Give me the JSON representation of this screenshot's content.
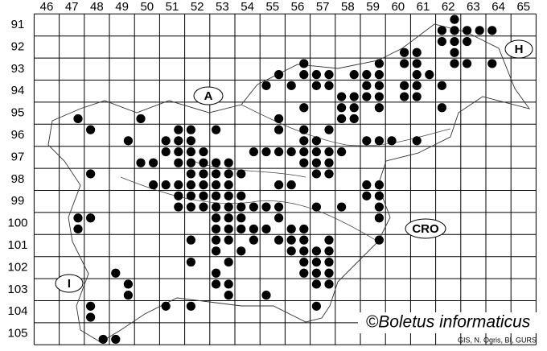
{
  "columns": [
    46,
    47,
    48,
    49,
    50,
    51,
    52,
    53,
    54,
    55,
    56,
    57,
    58,
    59,
    60,
    61,
    62,
    63,
    64,
    65
  ],
  "rows": [
    91,
    92,
    93,
    94,
    95,
    96,
    97,
    98,
    99,
    100,
    101,
    102,
    103,
    104,
    105
  ],
  "region_labels": [
    "A",
    "H",
    "I",
    "CRO"
  ],
  "watermark": "©Boletus informaticus",
  "credit": "GIS, N. Ogris, BI, GURS",
  "dots": [
    [
      62.25,
      90.75
    ],
    [
      61.75,
      91.25
    ],
    [
      62.25,
      91.25
    ],
    [
      62.75,
      91.25
    ],
    [
      63.25,
      91.25
    ],
    [
      63.75,
      91.25
    ],
    [
      61.75,
      91.75
    ],
    [
      62.25,
      91.75
    ],
    [
      62.75,
      91.75
    ],
    [
      60.25,
      92.25
    ],
    [
      60.75,
      92.25
    ],
    [
      62.25,
      92.25
    ],
    [
      56.25,
      92.75
    ],
    [
      59.25,
      92.75
    ],
    [
      60.25,
      92.75
    ],
    [
      60.75,
      92.75
    ],
    [
      62.25,
      92.75
    ],
    [
      62.75,
      92.75
    ],
    [
      63.75,
      92.75
    ],
    [
      55.25,
      93.25
    ],
    [
      56.25,
      93.25
    ],
    [
      56.75,
      93.25
    ],
    [
      57.25,
      93.25
    ],
    [
      58.25,
      93.25
    ],
    [
      58.75,
      93.25
    ],
    [
      59.25,
      93.25
    ],
    [
      60.75,
      93.25
    ],
    [
      61.25,
      93.25
    ],
    [
      54.75,
      93.75
    ],
    [
      55.75,
      93.75
    ],
    [
      56.75,
      93.75
    ],
    [
      57.25,
      93.75
    ],
    [
      58.75,
      93.75
    ],
    [
      59.25,
      93.75
    ],
    [
      60.25,
      93.75
    ],
    [
      60.75,
      93.75
    ],
    [
      61.75,
      93.75
    ],
    [
      57.75,
      94.25
    ],
    [
      58.25,
      94.25
    ],
    [
      58.75,
      94.25
    ],
    [
      59.25,
      94.25
    ],
    [
      60.25,
      94.25
    ],
    [
      60.75,
      94.25
    ],
    [
      56.25,
      94.75
    ],
    [
      57.75,
      94.75
    ],
    [
      58.25,
      94.75
    ],
    [
      59.25,
      94.75
    ],
    [
      61.75,
      94.75
    ],
    [
      47.25,
      95.25
    ],
    [
      49.75,
      95.25
    ],
    [
      55.25,
      95.25
    ],
    [
      57.75,
      95.25
    ],
    [
      58.25,
      95.25
    ],
    [
      47.75,
      95.75
    ],
    [
      51.25,
      95.75
    ],
    [
      51.75,
      95.75
    ],
    [
      52.75,
      95.75
    ],
    [
      55.25,
      95.75
    ],
    [
      56.25,
      95.75
    ],
    [
      57.25,
      95.75
    ],
    [
      49.25,
      96.25
    ],
    [
      50.75,
      96.25
    ],
    [
      51.25,
      96.25
    ],
    [
      51.75,
      96.25
    ],
    [
      56.25,
      96.25
    ],
    [
      56.75,
      96.25
    ],
    [
      58.75,
      96.25
    ],
    [
      59.25,
      96.25
    ],
    [
      59.75,
      96.25
    ],
    [
      60.75,
      96.25
    ],
    [
      50.75,
      96.75
    ],
    [
      51.25,
      96.75
    ],
    [
      51.75,
      96.75
    ],
    [
      52.25,
      96.75
    ],
    [
      54.25,
      96.75
    ],
    [
      54.75,
      96.75
    ],
    [
      55.25,
      96.75
    ],
    [
      55.75,
      96.75
    ],
    [
      56.25,
      96.75
    ],
    [
      56.75,
      96.75
    ],
    [
      57.25,
      96.75
    ],
    [
      57.75,
      96.75
    ],
    [
      49.75,
      97.25
    ],
    [
      50.25,
      97.25
    ],
    [
      51.25,
      97.25
    ],
    [
      51.75,
      97.25
    ],
    [
      52.25,
      97.25
    ],
    [
      52.75,
      97.25
    ],
    [
      53.25,
      97.25
    ],
    [
      56.25,
      97.25
    ],
    [
      56.75,
      97.25
    ],
    [
      57.25,
      97.25
    ],
    [
      47.75,
      97.75
    ],
    [
      51.75,
      97.75
    ],
    [
      52.25,
      97.75
    ],
    [
      52.75,
      97.75
    ],
    [
      53.25,
      97.75
    ],
    [
      53.75,
      97.75
    ],
    [
      56.75,
      97.75
    ],
    [
      57.25,
      97.75
    ],
    [
      50.25,
      98.25
    ],
    [
      50.75,
      98.25
    ],
    [
      51.25,
      98.25
    ],
    [
      51.75,
      98.25
    ],
    [
      52.25,
      98.25
    ],
    [
      52.75,
      98.25
    ],
    [
      53.25,
      98.25
    ],
    [
      55.25,
      98.25
    ],
    [
      55.75,
      98.25
    ],
    [
      58.75,
      98.25
    ],
    [
      59.25,
      98.25
    ],
    [
      51.25,
      98.75
    ],
    [
      51.75,
      98.75
    ],
    [
      52.25,
      98.75
    ],
    [
      52.75,
      98.75
    ],
    [
      53.25,
      98.75
    ],
    [
      53.75,
      98.75
    ],
    [
      58.75,
      98.75
    ],
    [
      59.25,
      98.75
    ],
    [
      51.25,
      99.25
    ],
    [
      51.75,
      99.25
    ],
    [
      52.25,
      99.25
    ],
    [
      52.75,
      99.25
    ],
    [
      53.25,
      99.25
    ],
    [
      53.75,
      99.25
    ],
    [
      54.25,
      99.25
    ],
    [
      54.75,
      99.25
    ],
    [
      55.25,
      99.25
    ],
    [
      56.75,
      99.25
    ],
    [
      57.75,
      99.25
    ],
    [
      59.25,
      99.25
    ],
    [
      47.25,
      99.75
    ],
    [
      47.75,
      99.75
    ],
    [
      52.75,
      99.75
    ],
    [
      53.25,
      99.75
    ],
    [
      53.75,
      99.75
    ],
    [
      55.25,
      99.75
    ],
    [
      59.25,
      99.75
    ],
    [
      47.25,
      100.25
    ],
    [
      52.75,
      100.25
    ],
    [
      53.25,
      100.25
    ],
    [
      53.75,
      100.25
    ],
    [
      54.25,
      100.25
    ],
    [
      54.75,
      100.25
    ],
    [
      55.75,
      100.25
    ],
    [
      56.25,
      100.25
    ],
    [
      51.75,
      100.75
    ],
    [
      52.75,
      100.75
    ],
    [
      53.25,
      100.75
    ],
    [
      54.25,
      100.75
    ],
    [
      55.25,
      100.75
    ],
    [
      55.75,
      100.75
    ],
    [
      56.25,
      100.75
    ],
    [
      57.25,
      100.75
    ],
    [
      59.25,
      100.75
    ],
    [
      52.75,
      101.25
    ],
    [
      53.75,
      101.25
    ],
    [
      55.75,
      101.25
    ],
    [
      56.25,
      101.25
    ],
    [
      56.75,
      101.25
    ],
    [
      57.25,
      101.25
    ],
    [
      51.75,
      101.75
    ],
    [
      53.25,
      101.75
    ],
    [
      56.25,
      101.75
    ],
    [
      56.75,
      101.75
    ],
    [
      57.25,
      101.75
    ],
    [
      48.75,
      102.25
    ],
    [
      52.75,
      102.25
    ],
    [
      56.25,
      102.25
    ],
    [
      56.75,
      102.25
    ],
    [
      57.25,
      102.25
    ],
    [
      49.25,
      102.75
    ],
    [
      52.75,
      102.75
    ],
    [
      53.25,
      102.75
    ],
    [
      56.75,
      102.75
    ],
    [
      57.25,
      102.75
    ],
    [
      49.25,
      103.25
    ],
    [
      53.25,
      103.25
    ],
    [
      54.75,
      103.25
    ],
    [
      47.75,
      103.75
    ],
    [
      50.75,
      103.75
    ],
    [
      51.75,
      103.75
    ],
    [
      56.75,
      103.75
    ],
    [
      47.75,
      104.25
    ],
    [
      48.25,
      105.25
    ],
    [
      48.75,
      105.25
    ]
  ]
}
